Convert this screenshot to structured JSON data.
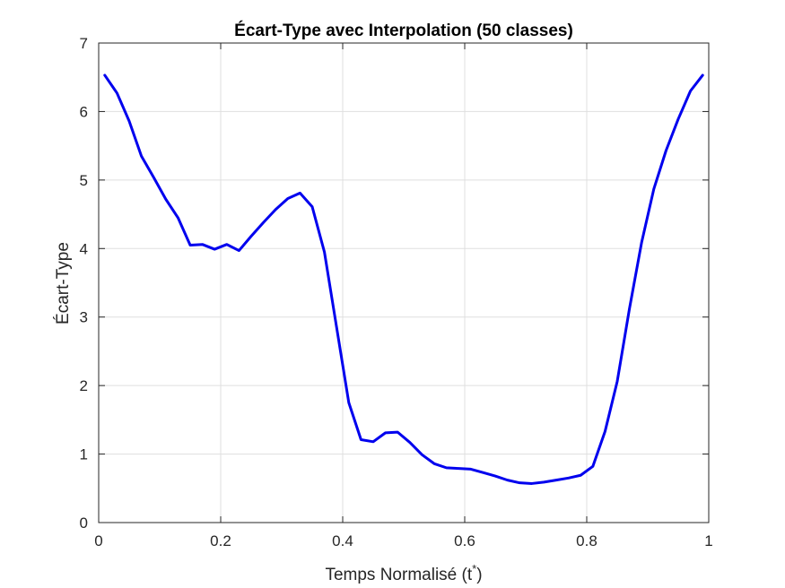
{
  "chart_data": {
    "type": "line",
    "title": "Écart-Type avec Interpolation (50 classes)",
    "xlabel_main": "Temps Normalisé (t",
    "xlabel_sup": "*",
    "xlabel_close": ")",
    "ylabel": "Écart-Type",
    "xlim": [
      0,
      1
    ],
    "ylim": [
      0,
      7
    ],
    "xticks": [
      "0",
      "0.2",
      "0.4",
      "0.6",
      "0.8",
      "1"
    ],
    "xtick_values": [
      0,
      0.2,
      0.4,
      0.6,
      0.8,
      1
    ],
    "yticks": [
      "0",
      "1",
      "2",
      "3",
      "4",
      "5",
      "6",
      "7"
    ],
    "ytick_values": [
      0,
      1,
      2,
      3,
      4,
      5,
      6,
      7
    ],
    "grid": true,
    "line_color": "#0000ee",
    "series": [
      {
        "x": [
          0.01,
          0.03,
          0.05,
          0.07,
          0.09,
          0.11,
          0.13,
          0.15,
          0.17,
          0.19,
          0.21,
          0.23,
          0.25,
          0.27,
          0.29,
          0.31,
          0.33,
          0.35,
          0.37,
          0.39,
          0.41,
          0.43,
          0.45,
          0.47,
          0.49,
          0.51,
          0.53,
          0.55,
          0.57,
          0.59,
          0.61,
          0.63,
          0.65,
          0.67,
          0.69,
          0.71,
          0.73,
          0.75,
          0.77,
          0.79,
          0.81,
          0.83,
          0.85,
          0.87,
          0.89,
          0.91,
          0.93,
          0.95,
          0.97,
          0.99
        ],
        "y": [
          6.53,
          6.27,
          5.86,
          5.35,
          5.04,
          4.72,
          4.45,
          4.05,
          4.06,
          3.99,
          4.06,
          3.97,
          4.18,
          4.38,
          4.57,
          4.73,
          4.81,
          4.61,
          3.95,
          2.85,
          1.75,
          1.21,
          1.18,
          1.31,
          1.32,
          1.17,
          0.99,
          0.86,
          0.8,
          0.79,
          0.78,
          0.73,
          0.68,
          0.62,
          0.58,
          0.57,
          0.59,
          0.62,
          0.65,
          0.69,
          0.82,
          1.33,
          2.06,
          3.12,
          4.09,
          4.87,
          5.43,
          5.89,
          6.3,
          6.53
        ]
      }
    ]
  }
}
